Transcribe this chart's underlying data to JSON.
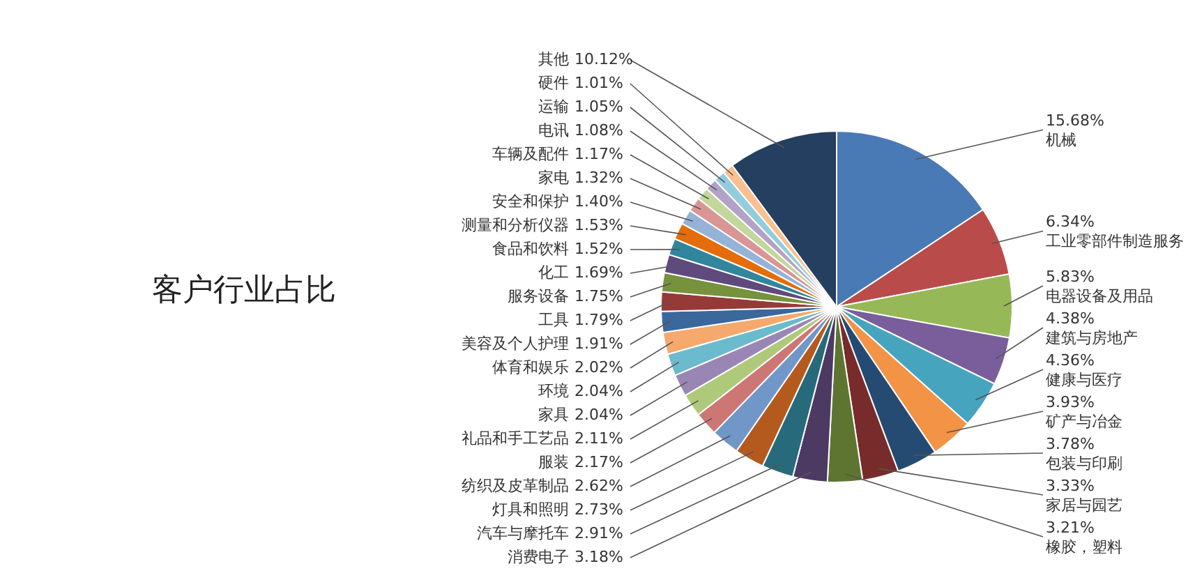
{
  "chart_data": {
    "type": "pie",
    "title": "客户行业占比",
    "categories": [
      "机械",
      "工业零部件制造服务",
      "电器设备及用品",
      "建筑与房地产",
      "健康与医疗",
      "矿产与冶金",
      "包装与印刷",
      "家居与园艺",
      "橡胶，塑料",
      "消费电子",
      "汽车与摩托车",
      "灯具和照明",
      "纺织及皮革制品",
      "服装",
      "礼品和手工艺品",
      "家具",
      "环境",
      "体育和娱乐",
      "美容及个人护理",
      "工具",
      "服务设备",
      "化工",
      "食品和饮料",
      "测量和分析仪器",
      "安全和保护",
      "家电",
      "车辆及配件",
      "电讯",
      "运输",
      "硬件",
      "其他"
    ],
    "values": [
      15.68,
      6.34,
      5.83,
      4.38,
      4.36,
      3.93,
      3.78,
      3.33,
      3.21,
      3.18,
      2.91,
      2.73,
      2.62,
      2.17,
      2.11,
      2.04,
      2.04,
      2.02,
      1.91,
      1.79,
      1.75,
      1.69,
      1.52,
      1.53,
      1.4,
      1.32,
      1.17,
      1.08,
      1.05,
      1.01,
      10.12
    ],
    "value_labels": [
      "15.68%",
      "6.34%",
      "5.83%",
      "4.38%",
      "4.36%",
      "3.93%",
      "3.78%",
      "3.33%",
      "3.21%",
      "3.18%",
      "2.91%",
      "2.73%",
      "2.62%",
      "2.17%",
      "2.11%",
      "2.04%",
      "2.04%",
      "2.02%",
      "1.91%",
      "1.79%",
      "1.75%",
      "1.69%",
      "1.52%",
      "1.53%",
      "1.40%",
      "1.32%",
      "1.17%",
      "1.08%",
      "1.05%",
      "1.01%",
      "10.12%"
    ],
    "colors": [
      "#4a7ab5",
      "#b94c4a",
      "#97b856",
      "#7a5e9b",
      "#46a4be",
      "#f29346",
      "#264b73",
      "#772c2b",
      "#5e7531",
      "#4d3a62",
      "#276a7c",
      "#b55a1e",
      "#7097c8",
      "#cd7775",
      "#afc97a",
      "#9a86b4",
      "#6bbacd",
      "#f5a96d",
      "#3a679c",
      "#963a38",
      "#76923c",
      "#5f4a7e",
      "#31859c",
      "#e46c0a",
      "#95b3d7",
      "#d99694",
      "#c3d69b",
      "#b3a2c7",
      "#93cddd",
      "#fac090",
      "#243f60"
    ]
  }
}
